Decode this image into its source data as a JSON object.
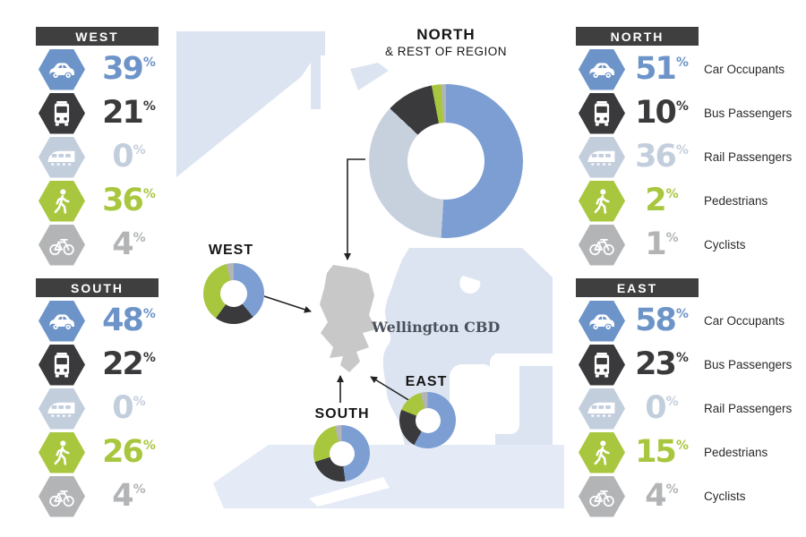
{
  "colors": {
    "car": "#6d94c9",
    "bus": "#3a3a3c",
    "rail": "#c3cedd",
    "pedestrian": "#a8c73e",
    "cyclist": "#b2b4b6",
    "donut_car": "#7c9ed2",
    "donut_rail": "#c7d0dd",
    "header_bg": "#3f3f3f",
    "header_text": "#ffffff",
    "map_land": "#dce4f2",
    "map_land_light": "#e4eaf6",
    "cbd_fill": "#c8c8c8",
    "arrow": "#222222"
  },
  "percent_sign": "%",
  "panels": {
    "west": {
      "title": "WEST",
      "rows": [
        {
          "icon": "car-icon",
          "mode": "car",
          "value": "39"
        },
        {
          "icon": "bus-icon",
          "mode": "bus",
          "value": "21"
        },
        {
          "icon": "train-icon",
          "mode": "rail",
          "value": "0"
        },
        {
          "icon": "pedestrian-icon",
          "mode": "pedestrian",
          "value": "36"
        },
        {
          "icon": "bicycle-icon",
          "mode": "cyclist",
          "value": "4"
        }
      ]
    },
    "south": {
      "title": "SOUTH",
      "rows": [
        {
          "icon": "car-icon",
          "mode": "car",
          "value": "48"
        },
        {
          "icon": "bus-icon",
          "mode": "bus",
          "value": "22"
        },
        {
          "icon": "train-icon",
          "mode": "rail",
          "value": "0"
        },
        {
          "icon": "pedestrian-icon",
          "mode": "pedestrian",
          "value": "26"
        },
        {
          "icon": "bicycle-icon",
          "mode": "cyclist",
          "value": "4"
        }
      ]
    },
    "north": {
      "title": "NORTH",
      "rows": [
        {
          "icon": "car-icon",
          "mode": "car",
          "value": "51",
          "label": "Car Occupants"
        },
        {
          "icon": "bus-icon",
          "mode": "bus",
          "value": "10",
          "label": "Bus Passengers"
        },
        {
          "icon": "train-icon",
          "mode": "rail",
          "value": "36",
          "label": "Rail Passengers"
        },
        {
          "icon": "pedestrian-icon",
          "mode": "pedestrian",
          "value": "2",
          "label": "Pedestrians"
        },
        {
          "icon": "bicycle-icon",
          "mode": "cyclist",
          "value": "1",
          "label": "Cyclists"
        }
      ]
    },
    "east": {
      "title": "EAST",
      "rows": [
        {
          "icon": "car-icon",
          "mode": "car",
          "value": "58",
          "label": "Car Occupants"
        },
        {
          "icon": "bus-icon",
          "mode": "bus",
          "value": "23",
          "label": "Bus Passengers"
        },
        {
          "icon": "train-icon",
          "mode": "rail",
          "value": "0",
          "label": "Rail Passengers"
        },
        {
          "icon": "pedestrian-icon",
          "mode": "pedestrian",
          "value": "15",
          "label": "Pedestrians"
        },
        {
          "icon": "bicycle-icon",
          "mode": "cyclist",
          "value": "4",
          "label": "Cyclists"
        }
      ]
    }
  },
  "map": {
    "north_title": "NORTH",
    "north_subtitle": "& REST OF REGION",
    "cbd_label": "Wellington CBD",
    "donut_labels": {
      "west": "WEST",
      "south": "SOUTH",
      "east": "EAST"
    },
    "donuts": {
      "north": {
        "segments": [
          {
            "mode": "car",
            "pct": 51
          },
          {
            "mode": "rail",
            "pct": 36
          },
          {
            "mode": "bus",
            "pct": 10
          },
          {
            "mode": "pedestrian",
            "pct": 2
          },
          {
            "mode": "cyclist",
            "pct": 1
          }
        ]
      },
      "west": {
        "segments": [
          {
            "mode": "car",
            "pct": 39
          },
          {
            "mode": "bus",
            "pct": 21
          },
          {
            "mode": "pedestrian",
            "pct": 36
          },
          {
            "mode": "cyclist",
            "pct": 4
          }
        ]
      },
      "south": {
        "segments": [
          {
            "mode": "car",
            "pct": 48
          },
          {
            "mode": "bus",
            "pct": 22
          },
          {
            "mode": "pedestrian",
            "pct": 26
          },
          {
            "mode": "cyclist",
            "pct": 4
          }
        ]
      },
      "east": {
        "segments": [
          {
            "mode": "car",
            "pct": 58
          },
          {
            "mode": "bus",
            "pct": 23
          },
          {
            "mode": "pedestrian",
            "pct": 15
          },
          {
            "mode": "cyclist",
            "pct": 4
          }
        ]
      }
    }
  },
  "chart_data": [
    {
      "type": "pie",
      "title": "WEST",
      "labels": [
        "Car Occupants",
        "Bus Passengers",
        "Rail Passengers",
        "Pedestrians",
        "Cyclists"
      ],
      "values": [
        39,
        21,
        0,
        36,
        4
      ]
    },
    {
      "type": "pie",
      "title": "SOUTH",
      "labels": [
        "Car Occupants",
        "Bus Passengers",
        "Rail Passengers",
        "Pedestrians",
        "Cyclists"
      ],
      "values": [
        48,
        22,
        0,
        26,
        4
      ]
    },
    {
      "type": "pie",
      "title": "NORTH & REST OF REGION",
      "labels": [
        "Car Occupants",
        "Bus Passengers",
        "Rail Passengers",
        "Pedestrians",
        "Cyclists"
      ],
      "values": [
        51,
        10,
        36,
        2,
        1
      ]
    },
    {
      "type": "pie",
      "title": "EAST",
      "labels": [
        "Car Occupants",
        "Bus Passengers",
        "Rail Passengers",
        "Pedestrians",
        "Cyclists"
      ],
      "values": [
        58,
        23,
        0,
        15,
        4
      ]
    }
  ]
}
